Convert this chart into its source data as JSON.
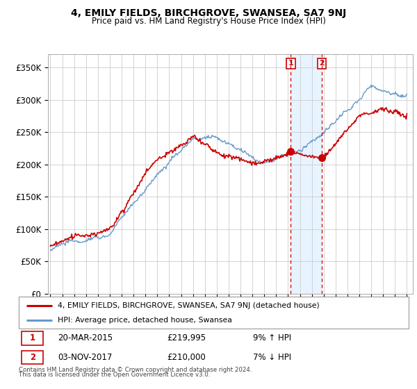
{
  "title": "4, EMILY FIELDS, BIRCHGROVE, SWANSEA, SA7 9NJ",
  "subtitle": "Price paid vs. HM Land Registry's House Price Index (HPI)",
  "ylabel_ticks": [
    "£0",
    "£50K",
    "£100K",
    "£150K",
    "£200K",
    "£250K",
    "£300K",
    "£350K"
  ],
  "ylim": [
    0,
    370000
  ],
  "yticks": [
    0,
    50000,
    100000,
    150000,
    200000,
    250000,
    300000,
    350000
  ],
  "sale1": {
    "date_label": "1",
    "year": 2015.22,
    "price": 219995,
    "pct": "9%",
    "dir": "↑",
    "date_str": "20-MAR-2015",
    "price_str": "£219,995"
  },
  "sale2": {
    "date_label": "2",
    "year": 2017.84,
    "price": 210000,
    "pct": "7%",
    "dir": "↓",
    "date_str": "03-NOV-2017",
    "price_str": "£210,000"
  },
  "legend_label1": "4, EMILY FIELDS, BIRCHGROVE, SWANSEA, SA7 9NJ (detached house)",
  "legend_label2": "HPI: Average price, detached house, Swansea",
  "footer1": "Contains HM Land Registry data © Crown copyright and database right 2024.",
  "footer2": "This data is licensed under the Open Government Licence v3.0.",
  "line1_color": "#cc0000",
  "line2_color": "#6699cc",
  "shade_color": "#ddeeff",
  "grid_color": "#cccccc",
  "background_color": "#ffffff"
}
